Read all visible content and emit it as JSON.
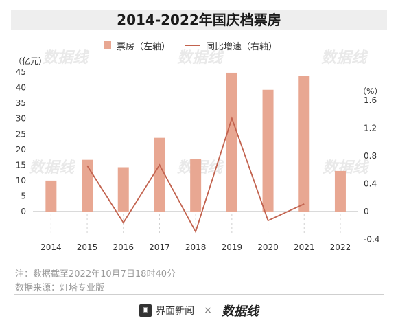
{
  "header": {
    "title": "2014-2022年国庆档票房"
  },
  "legend": {
    "bar_label": "票房（左轴）",
    "line_label": "同比增速（右轴）"
  },
  "units": {
    "left": "（亿元）",
    "right": "（%）"
  },
  "notes": {
    "line1": "注：数据截至2022年10月7日18时40分",
    "line2": "数据来源：灯塔专业版"
  },
  "footer": {
    "brand1": "界面新闻",
    "times": "×",
    "brand2": "数据线"
  },
  "watermark": "数据线",
  "colors": {
    "bar": "#e8a792",
    "line": "#c2624e"
  },
  "chart_data": {
    "type": "bar",
    "categories": [
      "2014",
      "2015",
      "2016",
      "2017",
      "2018",
      "2019",
      "2020",
      "2021",
      "2022"
    ],
    "series": [
      {
        "name": "票房（左轴）",
        "axis": "left",
        "type": "bar",
        "values": [
          10.0,
          16.7,
          14.3,
          23.8,
          17.0,
          44.8,
          39.3,
          43.9,
          13.1
        ]
      },
      {
        "name": "同比增速（右轴）",
        "axis": "right",
        "type": "line",
        "values": [
          null,
          0.66,
          -0.16,
          0.67,
          -0.29,
          1.34,
          -0.13,
          0.11,
          null
        ]
      }
    ],
    "y_left": {
      "min": 0,
      "max": 45,
      "ticks": [
        0,
        5,
        10,
        15,
        20,
        25,
        30,
        35,
        40,
        45
      ]
    },
    "y_right": {
      "min": -0.4,
      "max": 1.6,
      "ticks": [
        -0.4,
        0,
        0.4,
        0.8,
        1.2,
        1.6
      ]
    },
    "grid": false,
    "legend_position": "top"
  }
}
